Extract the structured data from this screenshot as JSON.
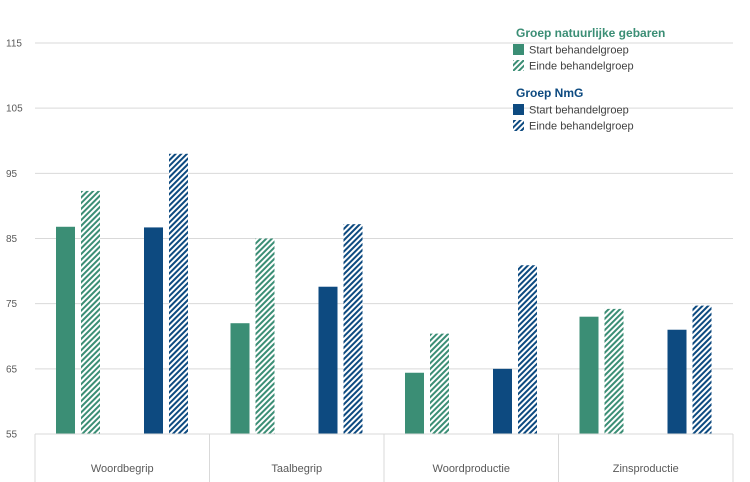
{
  "chart_data": {
    "type": "bar",
    "title": "",
    "xlabel": "",
    "ylabel": "",
    "ylim": [
      55,
      115
    ],
    "yticks": [
      55,
      65,
      75,
      85,
      95,
      105,
      115
    ],
    "grid": true,
    "categories": [
      "Woordbegrip",
      "Taalbegrip",
      "Woordproductie",
      "Zinsproductie"
    ],
    "series": [
      {
        "name": "Start behandelgroep",
        "group": "Groep natuurlijke gebaren",
        "pattern": "solid",
        "color": "#3b8e75",
        "values": [
          86.8,
          72.0,
          64.4,
          73.0
        ]
      },
      {
        "name": "Einde behandelgroep",
        "group": "Groep natuurlijke gebaren",
        "pattern": "hatch",
        "color": "#3b8e75",
        "values": [
          92.3,
          85.0,
          70.4,
          74.2
        ]
      },
      {
        "name": "Start behandelgroep",
        "group": "Groep NmG",
        "pattern": "solid",
        "color": "#0d4a80",
        "values": [
          86.7,
          77.6,
          65.0,
          71.0
        ]
      },
      {
        "name": "Einde behandelgroep",
        "group": "Groep NmG",
        "pattern": "hatch",
        "color": "#0d4a80",
        "values": [
          98.0,
          87.2,
          80.9,
          74.7
        ]
      }
    ],
    "legend": {
      "placement": "top-right",
      "groups": [
        {
          "title": "Groep natuurlijke gebaren",
          "color": "#3b8e75",
          "entries": [
            "Start behandelgroep",
            "Einde behandelgroep"
          ]
        },
        {
          "title": "Groep NmG",
          "color": "#0d4a80",
          "entries": [
            "Start behandelgroep",
            "Einde behandelgroep"
          ]
        }
      ]
    }
  },
  "colors": {
    "green": "#3b8e75",
    "blue": "#0d4a80",
    "grid": "#d9d9d9",
    "text": "#595959"
  }
}
